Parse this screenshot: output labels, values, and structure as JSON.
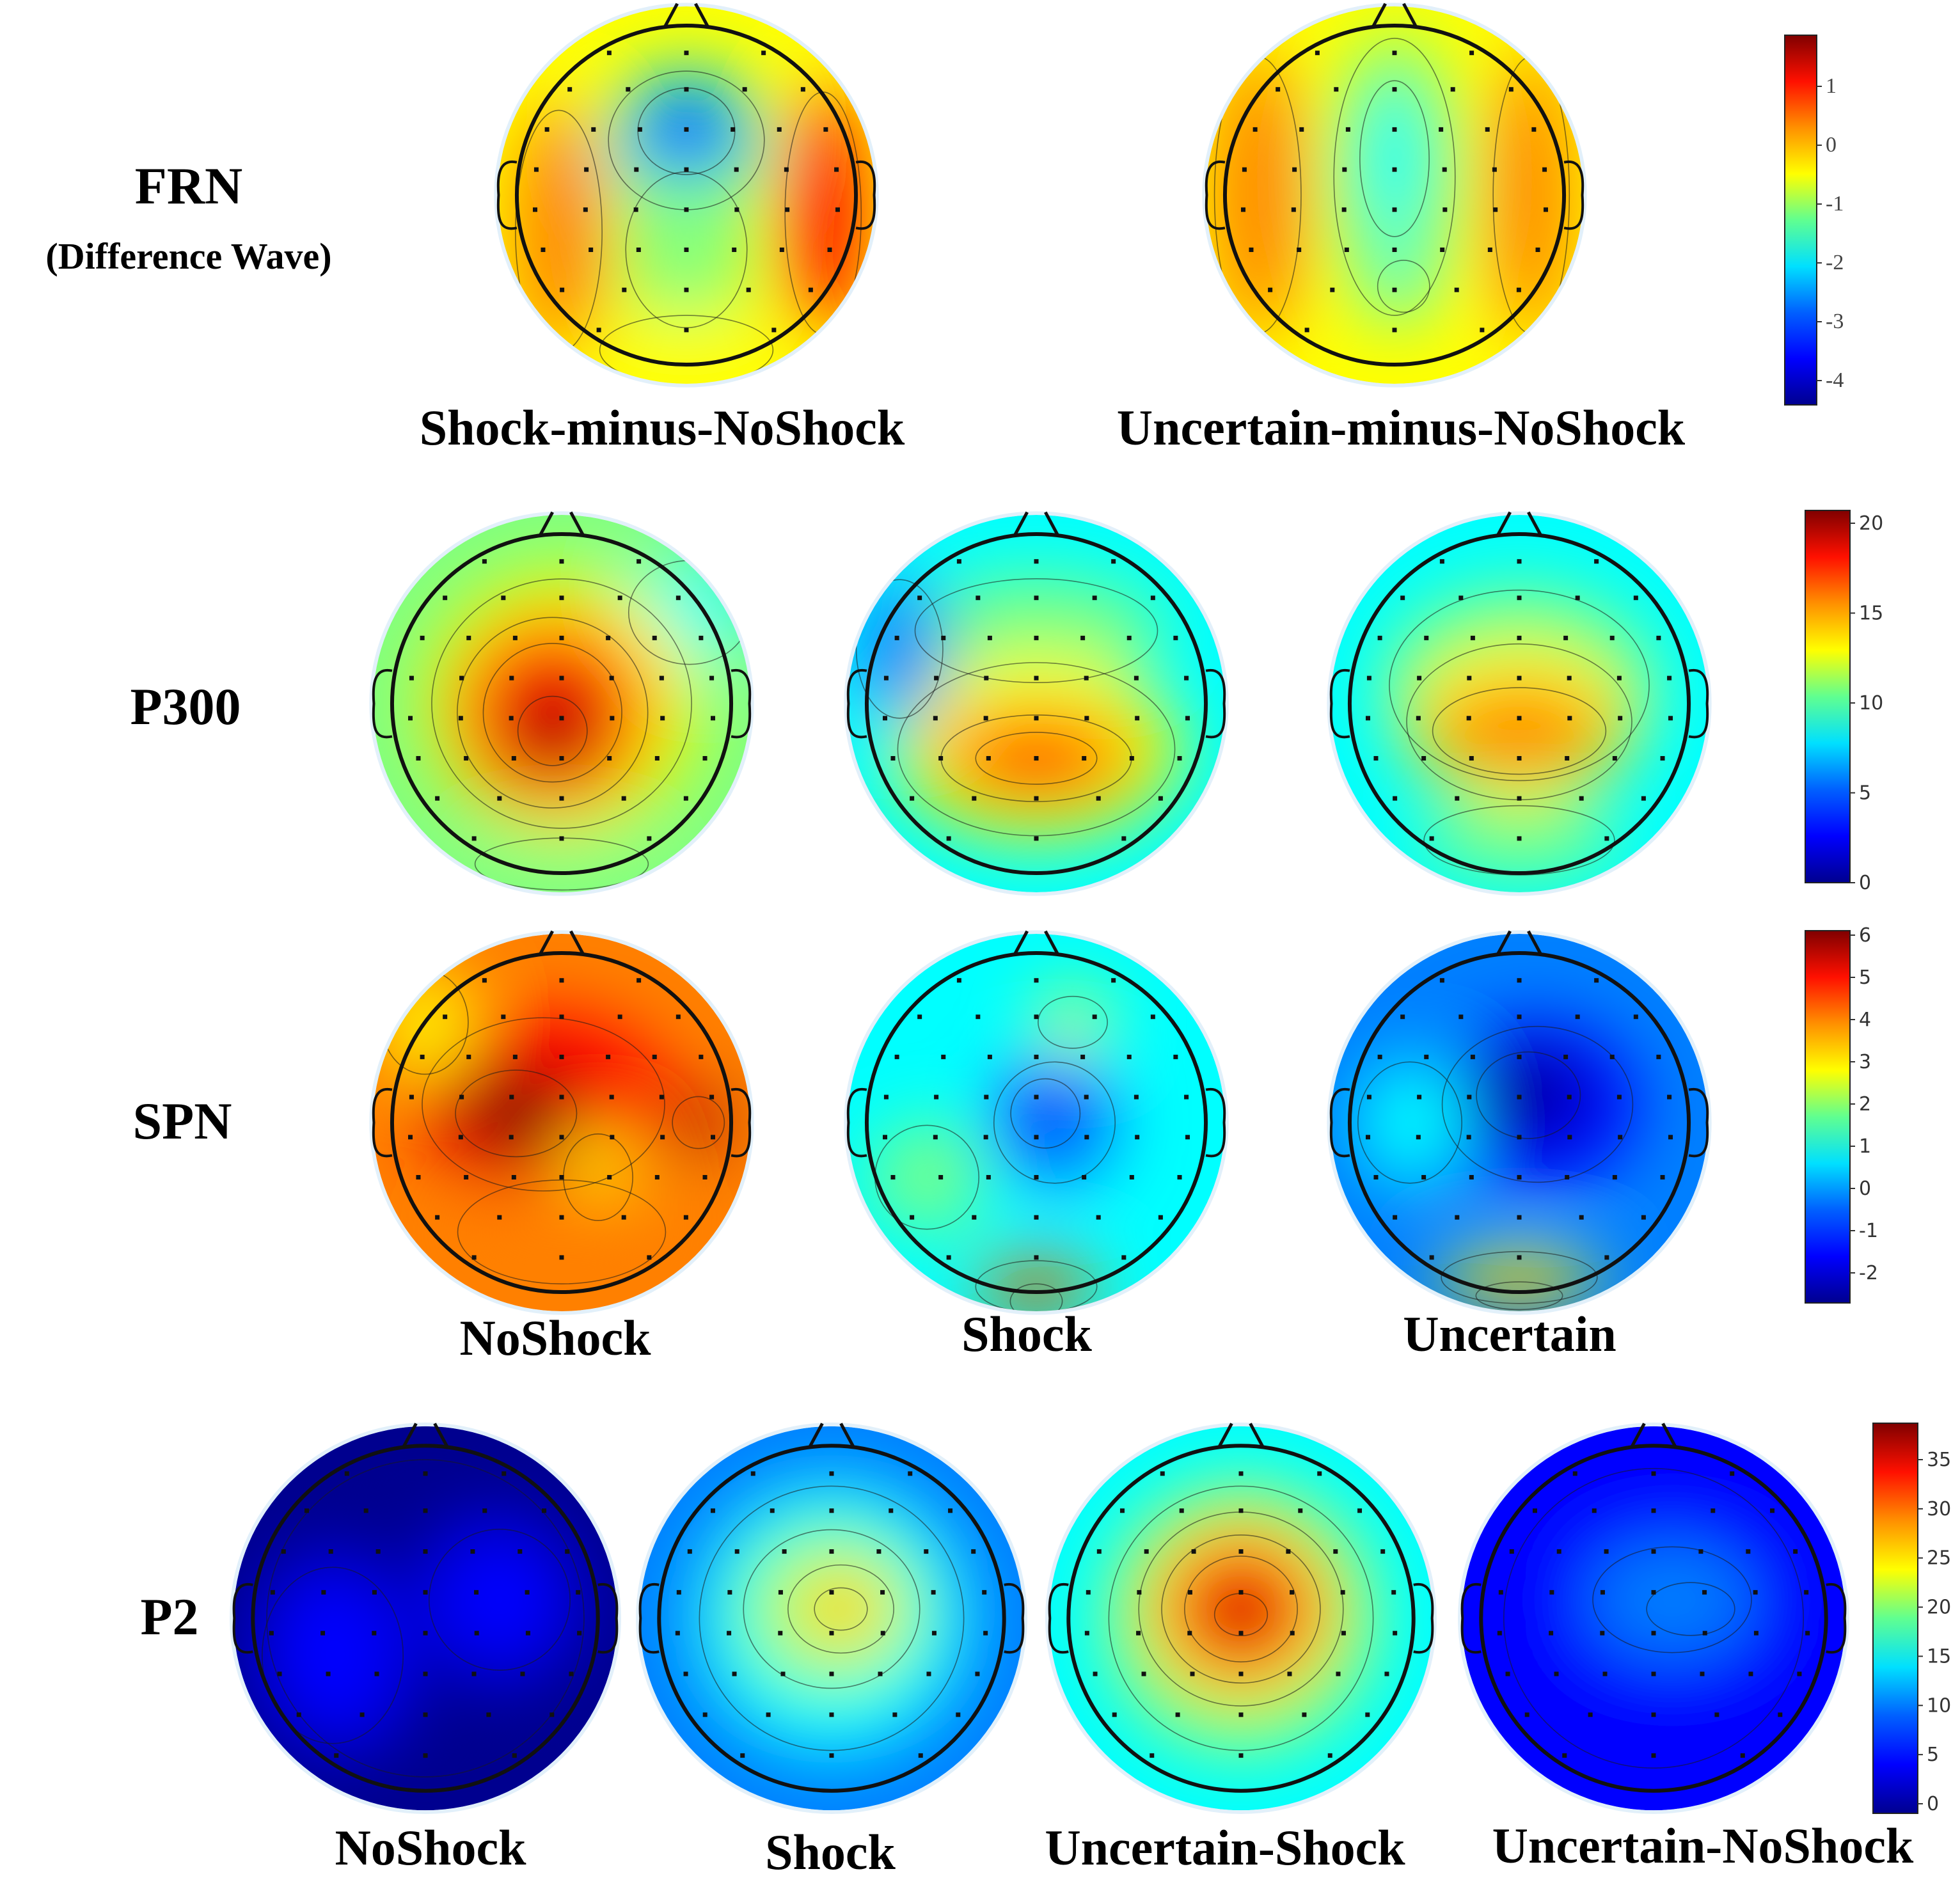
{
  "rows": {
    "frn": {
      "label": "FRN",
      "sublabel": "(Difference Wave)",
      "maps": [
        {
          "caption": "Shock-minus-NoShock"
        },
        {
          "caption": "Uncertain-minus-NoShock"
        }
      ],
      "colorbar": {
        "ticks": [
          "1",
          "0",
          "-1",
          "-2",
          "-3",
          "-4"
        ],
        "range": [
          -4.4,
          1.9
        ]
      }
    },
    "p300": {
      "label": "P300",
      "colorbar": {
        "ticks": [
          "20",
          "15",
          "10",
          "5",
          "0"
        ],
        "range": [
          0,
          20
        ]
      }
    },
    "spn": {
      "label": "SPN",
      "maps": [
        {
          "caption": "NoShock"
        },
        {
          "caption": "Shock"
        },
        {
          "caption": "Uncertain"
        }
      ],
      "colorbar": {
        "ticks": [
          "6",
          "5",
          "4",
          "3",
          "2",
          "1",
          "0",
          "-1",
          "-2"
        ],
        "range": [
          -2.8,
          6
        ]
      }
    },
    "p2": {
      "label": "P2",
      "maps": [
        {
          "caption": "NoShock"
        },
        {
          "caption": "Shock"
        },
        {
          "caption": "Uncertain-Shock"
        },
        {
          "caption": "Uncertain-NoShock"
        }
      ],
      "colorbar": {
        "ticks": [
          "35",
          "30",
          "25",
          "20",
          "15",
          "10",
          "5",
          "0"
        ],
        "range": [
          0,
          38
        ]
      }
    }
  },
  "colors": {
    "jet": [
      "#00008f",
      "#0000ff",
      "#0080ff",
      "#00ffff",
      "#80ff80",
      "#ffff00",
      "#ff8000",
      "#ff0000",
      "#800000"
    ]
  }
}
